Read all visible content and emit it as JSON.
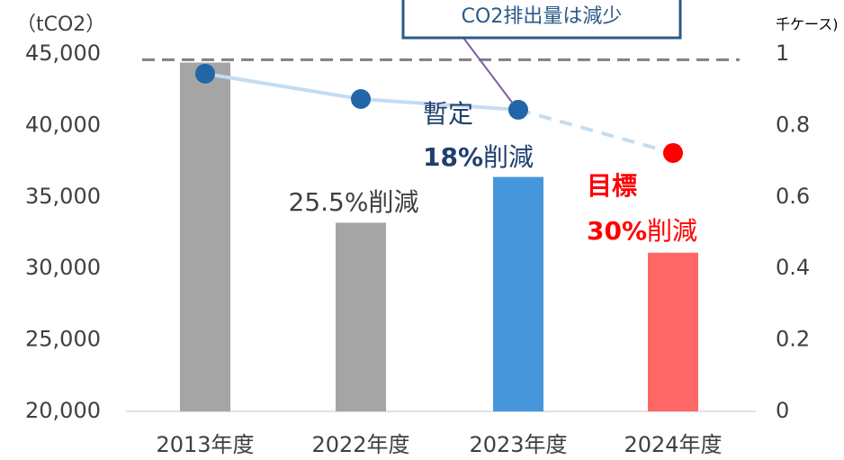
{
  "chart_data": {
    "type": "bar_line",
    "y_label": "（tCO2）",
    "y2_label": "千ケース)",
    "categories": [
      "2013年度",
      "2022年度",
      "2023年度",
      "2024年度"
    ],
    "values": [
      44400,
      33200,
      36400,
      31100
    ],
    "colors": [
      "#a5a5a5",
      "#a5a5a5",
      "#4696dc",
      "#ff6666"
    ],
    "ylim": [
      20000,
      45000
    ],
    "yticks": [
      {
        "value": 20000,
        "label": "20,000"
      },
      {
        "value": 25000,
        "label": "25,000"
      },
      {
        "value": 30000,
        "label": "30,000"
      },
      {
        "value": 35000,
        "label": "35,000"
      },
      {
        "value": 40000,
        "label": "40,000"
      },
      {
        "value": 45000,
        "label": "45,000"
      }
    ],
    "y2lim": [
      0,
      1
    ],
    "y2ticks": [
      0,
      0.2,
      0.4,
      0.6,
      0.8,
      1
    ],
    "reference_line": 44600,
    "line_series": {
      "axis": "y2",
      "color": "#c5dcf0",
      "values": [
        0.945,
        0.874,
        0.844,
        0.723
      ],
      "point_colors": [
        "#2266a8",
        "#2266a8",
        "#2266a8",
        "#ff0000"
      ],
      "dashed_last_segment": true
    },
    "annotations": {
      "callout": "CO2排出量は減少",
      "reduction_2022": "25.5%削減",
      "provisional_title": "暫定",
      "provisional_pct": "18%",
      "provisional_word": "削減",
      "target_title": "目標",
      "target_pct": "30%",
      "target_word": "削減"
    }
  }
}
